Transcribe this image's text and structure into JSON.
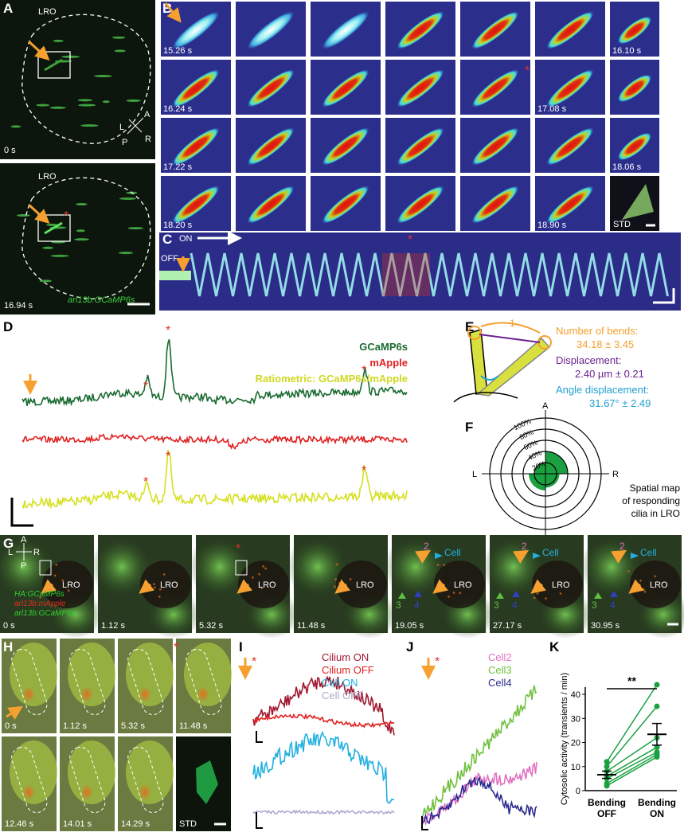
{
  "panel_a": {
    "label": "A",
    "region": "LRO",
    "time_top": "0 s",
    "time_bottom": "16.94 s",
    "axes": {
      "l": "L",
      "a": "A",
      "r": "R",
      "p": "P"
    },
    "asterisk": "*",
    "transgene": "arl13b:GCaMP6s"
  },
  "panel_b": {
    "label": "B",
    "times": [
      "15.26 s",
      "16.10 s",
      "16.24 s",
      "17.08 s",
      "17.22 s",
      "18.06 s",
      "18.20 s",
      "18.90 s"
    ],
    "std": "STD",
    "asterisk": "*"
  },
  "panel_c": {
    "label": "C",
    "on": "ON",
    "off": "OFF",
    "asterisk": "*"
  },
  "panel_d": {
    "label": "D",
    "series": [
      "GCaMP6s",
      "mApple",
      "Ratiometric: GCaMP6s/mApple"
    ],
    "asterisk": "*"
  },
  "panel_e": {
    "label": "E",
    "bend_index": "1",
    "bends_label": "Number of bends:",
    "bends_value": "34.18 ± 3.45",
    "displacement_label": "Displacement:",
    "displacement_value": "2.40 µm ± 0.21",
    "angle_label": "Angle displacement:",
    "angle_value": "31.67° ± 2.49"
  },
  "panel_f": {
    "label": "F",
    "axes": {
      "a": "A",
      "l": "L",
      "r": "R",
      "p": "P"
    },
    "rlim": [
      0,
      100
    ],
    "rticks": [
      {
        "value": 20,
        "label": "20%"
      },
      {
        "value": 40,
        "label": "40%"
      },
      {
        "value": 60,
        "label": "60%"
      },
      {
        "value": 80,
        "label": "80%"
      },
      {
        "value": 100,
        "label": "100%"
      }
    ],
    "sectors": [
      40,
      25,
      30,
      20
    ],
    "caption": [
      "Spatial map",
      "of responding",
      "cilia in LRO"
    ]
  },
  "panel_g": {
    "label": "G",
    "axes": {
      "a": "A",
      "l": "L",
      "r": "R",
      "p": "P"
    },
    "region": "LRO",
    "times": [
      "0 s",
      "1.12 s",
      "5.32 s",
      "11.48 s",
      "19.05 s",
      "27.17 s",
      "30.95 s"
    ],
    "asterisk": "*",
    "transgenes": [
      "HA:GCaMP6s",
      "arl13b:mApple",
      "arl13b:GCaMP6s"
    ],
    "cell2": "2",
    "cell": "Cell",
    "cell3": "3",
    "cell4": "4"
  },
  "panel_h": {
    "label": "H",
    "times": [
      "0 s",
      "1.12 s",
      "5.32 s",
      "11.48 s",
      "12.46 s",
      "14.01 s",
      "14.29 s"
    ],
    "std": "STD",
    "asterisk": "*"
  },
  "panel_i": {
    "label": "I",
    "legend": [
      "Cilium ON",
      "Cilium OFF",
      "Cell ON",
      "Cell OFF"
    ],
    "asterisk": "*"
  },
  "panel_j": {
    "label": "J",
    "legend": [
      "Cell2",
      "Cell3",
      "Cell4"
    ],
    "asterisk": "*"
  },
  "panel_k": {
    "label": "K",
    "ylabel": "Cytosolic activity (transients / min)",
    "significance": "**",
    "categories": [
      "Bending OFF",
      "Bending ON"
    ],
    "ylim": [
      0,
      43
    ],
    "yticks": [
      0,
      10,
      20,
      30,
      40
    ],
    "off": [
      12,
      10,
      8,
      6,
      5,
      3,
      2
    ],
    "on": [
      44,
      35,
      22,
      18,
      16,
      15,
      14
    ],
    "mean": [
      6.6,
      23.4
    ],
    "sem": [
      1.5,
      4.5
    ]
  }
}
